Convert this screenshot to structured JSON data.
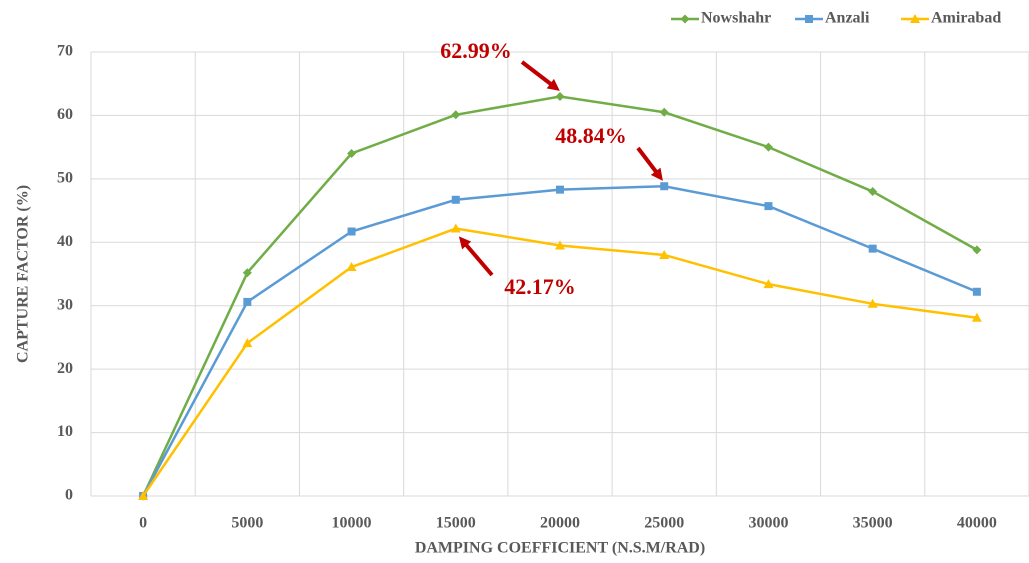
{
  "chart_data": {
    "type": "line",
    "xlabel": "DAMPING COEFFICIENT (N.S.M/RAD)",
    "ylabel": "CAPTURE FACTOR (%)",
    "categories": [
      "0",
      "5000",
      "10000",
      "15000",
      "20000",
      "25000",
      "30000",
      "35000",
      "40000"
    ],
    "series": [
      {
        "name": "Nowshahr",
        "color": "#70ad47",
        "marker": "diamond",
        "values": [
          0,
          35.2,
          54,
          60.1,
          62.99,
          60.5,
          55,
          48,
          38.8
        ]
      },
      {
        "name": "Anzali",
        "color": "#5b9bd5",
        "marker": "square",
        "values": [
          0,
          30.6,
          41.7,
          46.7,
          48.3,
          48.84,
          45.7,
          39,
          32.2
        ]
      },
      {
        "name": "Amirabad",
        "color": "#ffc000",
        "marker": "triangle",
        "values": [
          0,
          24.1,
          36.1,
          42.17,
          39.5,
          38,
          33.4,
          30.3,
          28.1
        ]
      }
    ],
    "annotations": [
      "62.99%",
      "48.84%",
      "42.17%"
    ],
    "annotation_color": "#c00000",
    "ylim": [
      0,
      70
    ],
    "yticks": [
      0,
      10,
      20,
      30,
      40,
      50,
      60,
      70
    ],
    "grid": true,
    "legend": "top-right"
  }
}
